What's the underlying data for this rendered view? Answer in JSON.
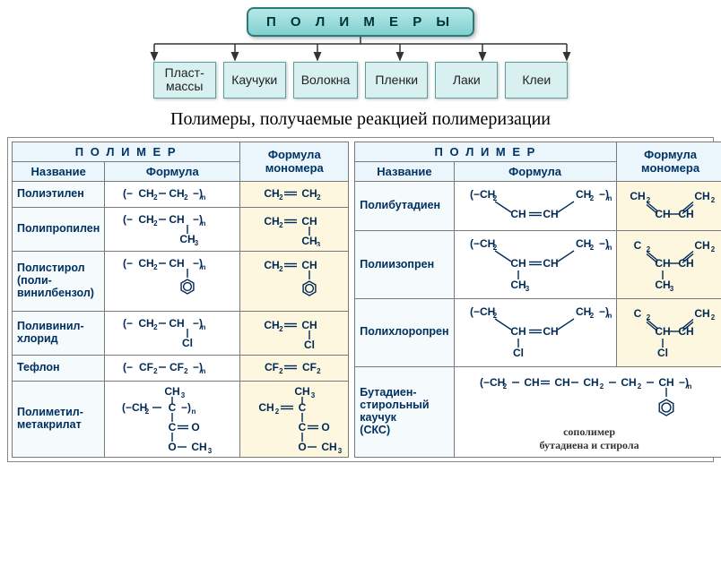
{
  "colors": {
    "root_bg_top": "#b8e8e8",
    "root_bg_bottom": "#7fd0d0",
    "root_border": "#2a7a7a",
    "child_bg": "#d8f0f0",
    "child_border": "#5aa0a0",
    "th_bg": "#eaf6fb",
    "name_bg": "#f5fbfd",
    "formula_bg": "#ffffff",
    "monomer_bg": "#fdf7e0",
    "formula_text": "#002a55",
    "arrow": "#333333"
  },
  "hierarchy": {
    "root": "П О Л И М Е Р Ы",
    "children": [
      "Пласт-\nмассы",
      "Каучуки",
      "Волокна",
      "Пленки",
      "Лаки",
      "Клеи"
    ]
  },
  "section_title": "Полимеры, получаемые реакцией полимеризации",
  "headers": {
    "polymer": "П О Л И М Е Р",
    "name": "Название",
    "formula": "Формула",
    "monomer": "Формула мономера"
  },
  "table_left": [
    {
      "name": "Полиэтилен",
      "formula_svg": "pe_poly",
      "monomer_svg": "pe_mono"
    },
    {
      "name": "Полипропилен",
      "formula_svg": "pp_poly",
      "monomer_svg": "pp_mono"
    },
    {
      "name": "Полистирол\n(поли-\nвинилбензол)",
      "formula_svg": "ps_poly",
      "monomer_svg": "ps_mono"
    },
    {
      "name": "Поливинил-\nхлорид",
      "formula_svg": "pvc_poly",
      "monomer_svg": "pvc_mono"
    },
    {
      "name": "Тефлон",
      "formula_svg": "ptfe_poly",
      "monomer_svg": "ptfe_mono"
    },
    {
      "name": "Полиметил-\nметакрилат",
      "formula_svg": "pmma_poly",
      "monomer_svg": "pmma_mono"
    }
  ],
  "table_right": [
    {
      "name": "Полибутадиен",
      "formula_svg": "pbd_poly",
      "monomer_svg": "pbd_mono"
    },
    {
      "name": "Полиизопрен",
      "formula_svg": "pip_poly",
      "monomer_svg": "pip_mono"
    },
    {
      "name": "Полихлоропрен",
      "formula_svg": "pcp_poly",
      "monomer_svg": "pcp_mono"
    },
    {
      "name": "Бутадиен-\nстирольный\nкаучук\n(СКС)",
      "formula_svg": "sbr_poly",
      "monomer_svg": "sbr_mono",
      "colspan_formula": true,
      "caption": "сополимер\nбутадиена и стирола"
    }
  ],
  "svg_style": {
    "stroke": "#002a55",
    "stroke_width": 1.4,
    "font_family": "Arial, sans-serif",
    "font_size": 12,
    "font_weight": "bold"
  }
}
